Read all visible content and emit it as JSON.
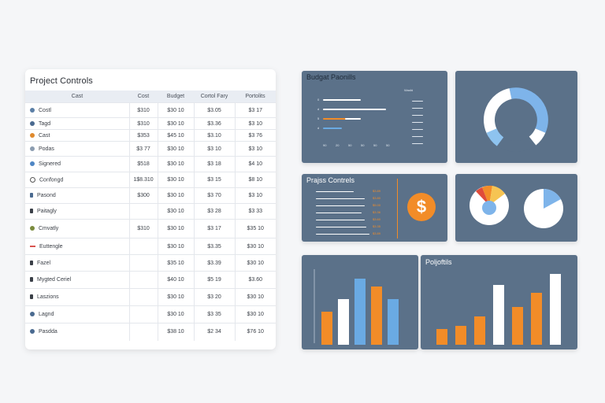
{
  "table": {
    "title": "Project Controls",
    "headers": [
      "Cast",
      "Cost",
      "Budget",
      "Cortol Fary",
      "Portolits"
    ],
    "rows": [
      {
        "name": "Costl",
        "icon": "circle-icon",
        "color": "#5b7fa6",
        "c1": "$310",
        "c2": "$30 10",
        "c3": "$3.05",
        "c4": "$3 17"
      },
      {
        "name": "Tagd",
        "icon": "circle-icon",
        "color": "#4a6a90",
        "c1": "$310",
        "c2": "$30 10",
        "c3": "$3.36",
        "c4": "$3 10"
      },
      {
        "name": "Cast",
        "icon": "circle-icon",
        "color": "#e08a2e",
        "c1": "$353",
        "c2": "$45 10",
        "c3": "$3.10",
        "c4": "$3 76"
      },
      {
        "name": "Podas",
        "icon": "circle-icon",
        "color": "#8b9cb0",
        "c1": "$3 77",
        "c2": "$30 10",
        "c3": "$3 10",
        "c4": "$3 10"
      },
      {
        "name": "Signered",
        "icon": "circle-icon",
        "color": "#4f86c4",
        "c1": "$518",
        "c2": "$30 10",
        "c3": "$3 18",
        "c4": "$4 10"
      },
      {
        "name": "Confongd",
        "icon": "ring-icon",
        "color": "#555555",
        "c1": "1$8.310",
        "c2": "$30 10",
        "c3": "$3 15",
        "c4": "$8 10"
      },
      {
        "name": "Pasond",
        "icon": "square-icon",
        "color": "#4a6a90",
        "c1": "$300",
        "c2": "$30 10",
        "c3": "$3 70",
        "c4": "$3 10"
      },
      {
        "name": "Paitagly",
        "icon": "square-icon",
        "color": "#3a3f47",
        "c1": "",
        "c2": "$30 10",
        "c3": "$3 28",
        "c4": "$3 33"
      },
      {
        "name": "Cmvatly",
        "icon": "circle-icon",
        "color": "#7a8b3e",
        "c1": "$310",
        "c2": "$30 10",
        "c3": "$3 17",
        "c4": "$35 10"
      },
      {
        "name": "Euttengle",
        "icon": "bar-icon",
        "color": "#d9534f",
        "c1": "",
        "c2": "$30 10",
        "c3": "$3.35",
        "c4": "$30 10"
      },
      {
        "name": "Fazel",
        "icon": "square-icon",
        "color": "#3a3f47",
        "c1": "",
        "c2": "$35 10",
        "c3": "$3.39",
        "c4": "$30 10"
      },
      {
        "name": "Mygted Ceriel",
        "icon": "square-icon",
        "color": "#3a3f47",
        "c1": "",
        "c2": "$40 10",
        "c3": "$5 19",
        "c4": "$3.60"
      },
      {
        "name": "Laszions",
        "icon": "square-icon",
        "color": "#3a3f47",
        "c1": "",
        "c2": "$30 10",
        "c3": "$3 20",
        "c4": "$30 10"
      },
      {
        "name": "Lagnd",
        "icon": "circle-icon",
        "color": "#4a6a90",
        "c1": "",
        "c2": "$30 10",
        "c3": "$3 35",
        "c4": "$30 10"
      },
      {
        "name": "Pasdda",
        "icon": "circle-icon",
        "color": "#4a6a90",
        "c1": "",
        "c2": "$38 10",
        "c3": "$2 34",
        "c4": "$76 10"
      }
    ]
  },
  "panels": {
    "budget": {
      "title": "Budgat Paonills",
      "legend": "Wasfd",
      "row_labels": [
        "0",
        "d",
        "5",
        "d"
      ],
      "axis_ticks": [
        "90",
        "20",
        "50",
        "50",
        "50",
        "50"
      ],
      "row_fractions": [
        0.6,
        1.0,
        0.6,
        0.3
      ]
    },
    "controls": {
      "title": "Prajss Contrels",
      "values": [
        "$3.89",
        "$3.80",
        "$5.00",
        "$3.36",
        "$3.60",
        "$3.35",
        "$3.89"
      ],
      "badge": "$"
    },
    "portfolio": {
      "title": "Poljoftils"
    }
  },
  "colors": {
    "panel": "#5b7189",
    "orange": "#f28c28",
    "blue": "#6aaae3",
    "white": "#ffffff"
  },
  "chart_data": [
    {
      "type": "pie",
      "title": "",
      "categories": [
        "blue",
        "white",
        "gap",
        "light-blue"
      ],
      "values": [
        30,
        40,
        15,
        15
      ]
    },
    {
      "type": "bar",
      "title": "",
      "categories": [
        "1",
        "2",
        "3",
        "4",
        "5"
      ],
      "series": [
        {
          "name": "values",
          "values": [
            42,
            58,
            84,
            74,
            58
          ]
        }
      ],
      "ylim": [
        0,
        100
      ]
    },
    {
      "type": "bar",
      "title": "Poljoftils",
      "categories": [
        "1",
        "2",
        "3",
        "4",
        "5",
        "6",
        "7"
      ],
      "series": [
        {
          "name": "values",
          "values": [
            20,
            24,
            36,
            76,
            48,
            66,
            90
          ]
        }
      ],
      "ylim": [
        0,
        100
      ]
    }
  ]
}
